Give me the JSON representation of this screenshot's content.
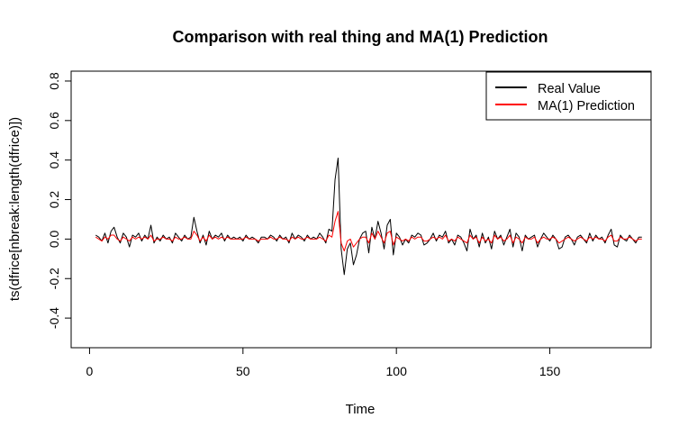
{
  "chart_data": {
    "type": "line",
    "title": "Comparison with real thing and MA(1) Prediction",
    "xlabel": "Time",
    "ylabel": "ts(dfrice[nbreak:length(dfrice)])",
    "xlim": [
      -6,
      183
    ],
    "ylim": [
      -0.55,
      0.85
    ],
    "x_ticks": [
      0,
      50,
      100,
      150
    ],
    "y_ticks": [
      -0.4,
      -0.2,
      0.0,
      0.2,
      0.4,
      0.6,
      0.8
    ],
    "y_tick_labels": [
      "-0.4",
      "-0.2",
      "0.0",
      "0.2",
      "0.4",
      "0.6",
      "0.8"
    ],
    "legend_position": "top-right",
    "grid": false,
    "x_start": 2,
    "series": [
      {
        "name": "Real Value",
        "color": "#000000",
        "values": [
          0.02,
          0.01,
          -0.01,
          0.03,
          -0.02,
          0.04,
          0.06,
          0.01,
          -0.02,
          0.03,
          0.01,
          -0.04,
          0.02,
          0.01,
          0.03,
          -0.01,
          0.02,
          0.0,
          0.07,
          -0.02,
          0.01,
          -0.01,
          0.02,
          0.0,
          0.01,
          -0.02,
          0.03,
          0.01,
          -0.01,
          0.02,
          0.0,
          0.01,
          0.11,
          0.04,
          -0.02,
          0.02,
          -0.03,
          0.04,
          0.0,
          0.02,
          0.01,
          0.03,
          -0.01,
          0.02,
          0.0,
          0.01,
          0.0,
          0.01,
          -0.01,
          0.02,
          0.0,
          0.01,
          0.0,
          -0.02,
          0.01,
          0.01,
          0.0,
          0.02,
          0.01,
          -0.01,
          0.02,
          0.0,
          0.01,
          -0.02,
          0.03,
          0.0,
          0.02,
          0.01,
          -0.01,
          0.02,
          0.0,
          0.01,
          0.0,
          0.03,
          0.01,
          -0.02,
          0.05,
          0.04,
          0.3,
          0.41,
          -0.05,
          -0.18,
          -0.05,
          -0.02,
          -0.13,
          -0.08,
          0.0,
          0.03,
          0.04,
          -0.07,
          0.06,
          0.0,
          0.09,
          0.03,
          -0.05,
          0.07,
          0.1,
          -0.08,
          0.03,
          0.01,
          -0.03,
          0.0,
          -0.02,
          0.02,
          0.01,
          0.03,
          0.02,
          -0.03,
          -0.02,
          0.0,
          0.03,
          -0.01,
          0.02,
          0.01,
          0.04,
          -0.02,
          0.0,
          -0.03,
          0.02,
          0.01,
          -0.02,
          -0.06,
          0.05,
          0.0,
          0.02,
          -0.04,
          0.03,
          -0.02,
          0.01,
          -0.05,
          0.04,
          0.0,
          0.02,
          -0.03,
          0.01,
          0.05,
          -0.04,
          0.03,
          0.01,
          -0.06,
          0.02,
          0.0,
          0.01,
          0.02,
          -0.04,
          0.0,
          0.03,
          0.01,
          -0.01,
          0.02,
          0.0,
          -0.05,
          -0.04,
          0.01,
          0.02,
          0.0,
          -0.03,
          0.01,
          0.02,
          0.0,
          -0.02,
          0.03,
          -0.01,
          0.02,
          0.0,
          0.01,
          -0.02,
          0.02,
          0.05,
          -0.03,
          -0.04,
          0.02,
          0.0,
          -0.01,
          0.02,
          0.0,
          -0.02,
          0.01,
          0.01
        ],
        "values_note": ""
      },
      {
        "name": "MA(1) Prediction",
        "color": "#ff0000",
        "values": [
          0.01,
          0.0,
          -0.01,
          0.01,
          0.0,
          0.02,
          0.02,
          0.0,
          -0.01,
          0.01,
          0.0,
          -0.01,
          0.01,
          0.0,
          0.01,
          0.0,
          0.01,
          0.0,
          0.02,
          -0.01,
          0.0,
          0.0,
          0.01,
          0.0,
          0.0,
          -0.01,
          0.01,
          0.0,
          0.0,
          0.01,
          0.0,
          0.0,
          0.04,
          0.02,
          -0.01,
          0.01,
          -0.01,
          0.02,
          0.0,
          0.01,
          0.0,
          0.01,
          0.0,
          0.01,
          0.0,
          0.0,
          0.0,
          0.0,
          0.0,
          0.01,
          0.0,
          0.0,
          0.0,
          -0.01,
          0.0,
          0.0,
          0.0,
          0.01,
          0.0,
          0.0,
          0.01,
          0.0,
          0.0,
          -0.01,
          0.01,
          0.0,
          0.01,
          0.0,
          0.0,
          0.01,
          0.0,
          0.0,
          0.0,
          0.01,
          0.0,
          -0.01,
          0.02,
          0.01,
          0.09,
          0.14,
          -0.02,
          -0.06,
          -0.01,
          0.0,
          -0.04,
          -0.02,
          0.0,
          0.01,
          0.01,
          -0.02,
          0.03,
          0.0,
          0.04,
          0.01,
          -0.02,
          0.03,
          0.04,
          -0.03,
          0.01,
          0.0,
          -0.01,
          0.0,
          -0.01,
          0.01,
          0.0,
          0.01,
          0.01,
          -0.01,
          -0.01,
          0.0,
          0.01,
          0.0,
          0.01,
          0.0,
          0.02,
          -0.01,
          0.0,
          -0.01,
          0.01,
          0.0,
          -0.01,
          -0.02,
          0.02,
          0.0,
          0.01,
          -0.02,
          0.01,
          -0.01,
          0.0,
          -0.02,
          0.02,
          0.0,
          0.01,
          -0.01,
          0.0,
          0.02,
          -0.02,
          0.01,
          0.0,
          -0.02,
          0.01,
          0.0,
          0.0,
          0.01,
          -0.02,
          0.0,
          0.01,
          0.0,
          0.0,
          0.01,
          0.0,
          -0.02,
          -0.01,
          0.0,
          0.01,
          0.0,
          -0.01,
          0.0,
          0.01,
          0.0,
          -0.01,
          0.01,
          0.0,
          0.01,
          0.0,
          0.0,
          -0.01,
          0.01,
          0.02,
          -0.01,
          -0.01,
          0.01,
          0.0,
          0.0,
          0.01,
          0.0,
          -0.01,
          0.0,
          0.0
        ]
      }
    ]
  }
}
